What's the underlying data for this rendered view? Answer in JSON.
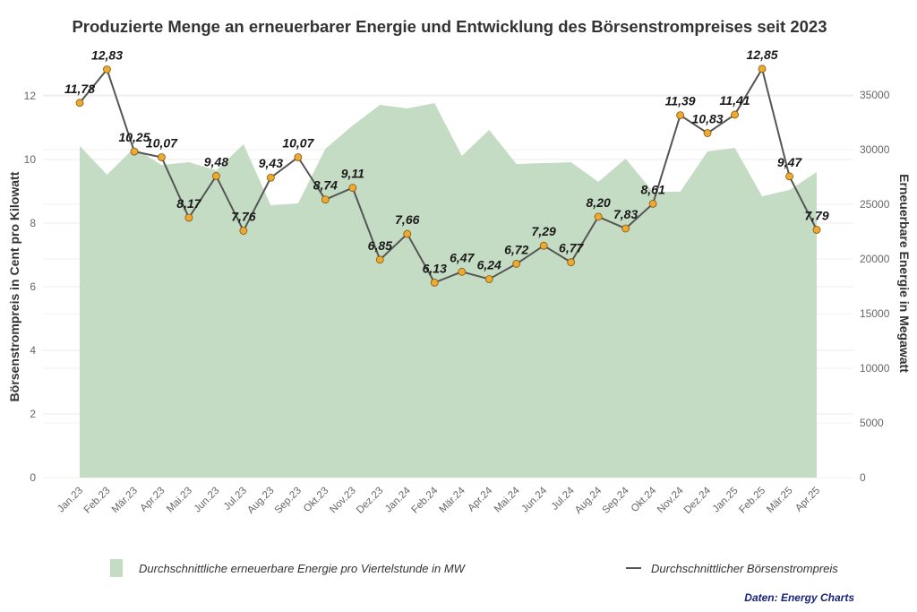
{
  "chart_data": {
    "type": "area+line",
    "title": "Produzierte Menge an erneuerbarer Energie und Entwicklung des Börsenstrompreises seit 2023",
    "xlabel": "",
    "ylabel_left": "Börsenstrompreis in Cent pro Kilowatt",
    "ylabel_right": "Erneuerbare Energie in Megawatt",
    "ylim_left": [
      0,
      13.5
    ],
    "ylim_right": [
      0,
      39375
    ],
    "yticks_left": [
      0,
      2,
      4,
      6,
      8,
      10,
      12
    ],
    "yticks_right": [
      0,
      5000,
      10000,
      15000,
      20000,
      25000,
      30000,
      35000
    ],
    "grid": true,
    "legend_position": "bottom",
    "categories": [
      "Jan.23",
      "Feb.23",
      "Mär.23",
      "Apr.23",
      "Mai.23",
      "Jun.23",
      "Jul.23",
      "Aug.23",
      "Sep.23",
      "Okt.23",
      "Nov.23",
      "Dez.23",
      "Jan.24",
      "Feb.24",
      "Mär.24",
      "Apr.24",
      "Mai.24",
      "Jun.24",
      "Jul.24",
      "Aug.24",
      "Sep.24",
      "Okt.24",
      "Nov.24",
      "Dez.24",
      "Jan.25",
      "Feb.25",
      "Mär.25",
      "Apr.25"
    ],
    "series": [
      {
        "name": "Durchschnittliche erneuerbare Energie pro Viertelstunde in MW",
        "type": "area",
        "axis": "right",
        "color": "#c5dcc4",
        "values": [
          30350,
          27700,
          30160,
          28600,
          28850,
          28100,
          30500,
          24900,
          25080,
          30080,
          32200,
          34100,
          33770,
          34260,
          29430,
          31800,
          28690,
          28770,
          28850,
          27050,
          29180,
          26150,
          26150,
          29840,
          30160,
          25740,
          26310,
          27950
        ]
      },
      {
        "name": "Durchschnittlicher Börsenstrompreis",
        "type": "line",
        "axis": "left",
        "color": "#555555",
        "marker_color": "#f0a830",
        "values": [
          11.78,
          12.83,
          10.25,
          10.07,
          8.17,
          9.48,
          7.76,
          9.43,
          10.07,
          8.74,
          9.11,
          6.85,
          7.66,
          6.13,
          6.47,
          6.24,
          6.72,
          7.29,
          6.77,
          8.2,
          7.83,
          8.61,
          11.39,
          10.83,
          11.41,
          12.85,
          9.47,
          7.79
        ],
        "labels": [
          "11,78",
          "12,83",
          "10,25",
          "10,07",
          "8,17",
          "9,48",
          "7,76",
          "9,43",
          "10,07",
          "8,74",
          "9,11",
          "6,85",
          "7,66",
          "6,13",
          "6,47",
          "6,24",
          "6,72",
          "7,29",
          "6,77",
          "8,20",
          "7,83",
          "8,61",
          "11,39",
          "10,83",
          "11,41",
          "12,85",
          "9,47",
          "7,79"
        ]
      }
    ],
    "source": "Daten: Energy Charts"
  }
}
